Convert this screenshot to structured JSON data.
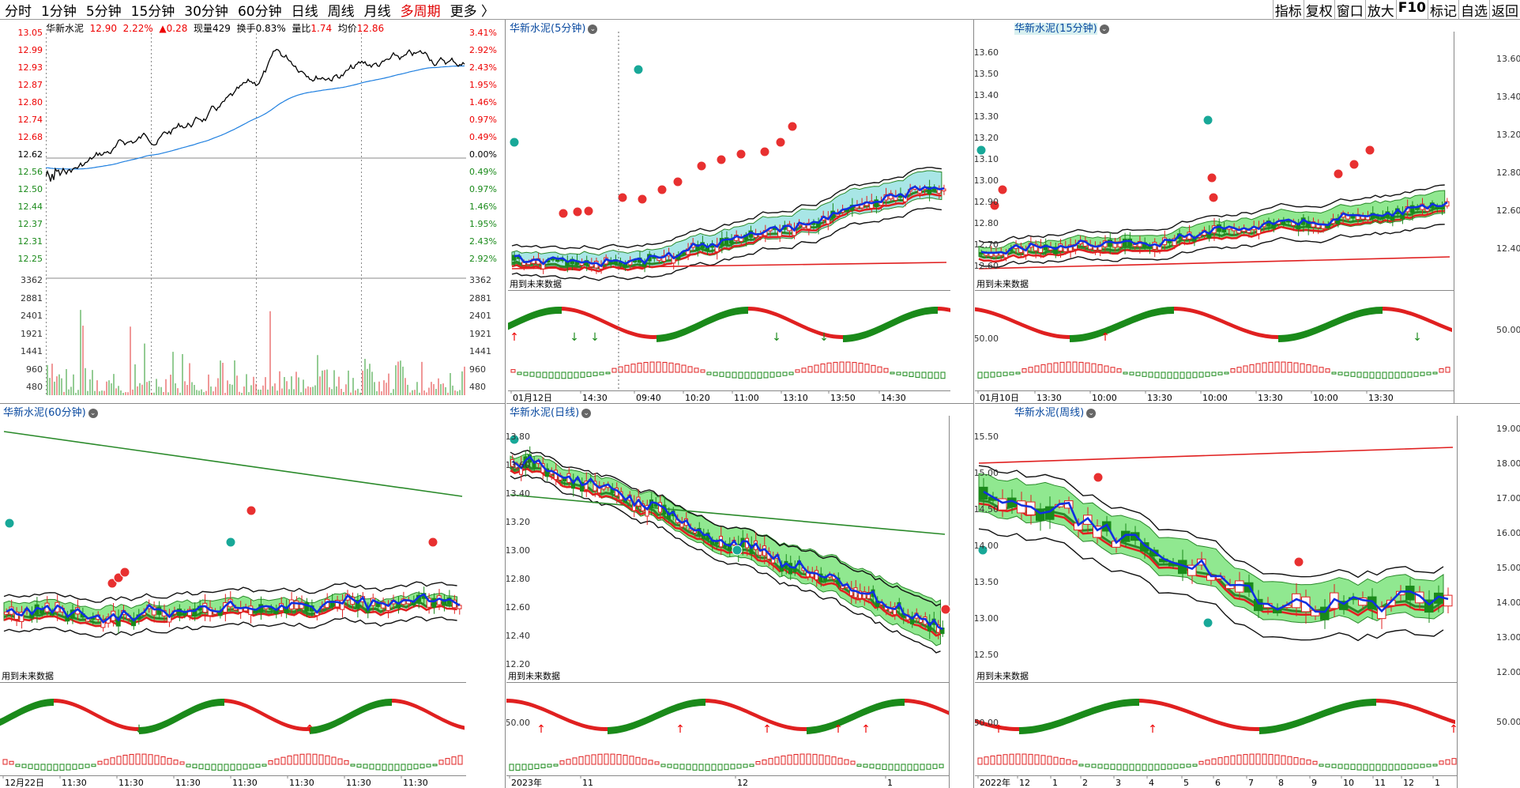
{
  "toolbar": {
    "periods": [
      "分时",
      "1分钟",
      "5分钟",
      "15分钟",
      "30分钟",
      "60分钟",
      "日线",
      "周线",
      "月线"
    ],
    "multi": "多周期",
    "more": "更多",
    "right": [
      "指标",
      "复权",
      "窗口",
      "放大",
      "F10",
      "标记",
      "自选",
      "返回"
    ]
  },
  "timeshare": {
    "name": "华新水泥",
    "price": "12.90",
    "pct": "2.22%",
    "change": "▲0.28",
    "volume_label": "现量",
    "volume": "429",
    "turnover_label": "换手",
    "turnover": "0.83%",
    "ratio_label": "量比",
    "ratio": "1.74",
    "avg_label": "均价",
    "avg": "12.86",
    "left_axis": [
      "13.05",
      "12.99",
      "12.93",
      "12.87",
      "12.80",
      "12.74",
      "12.68",
      "12.62",
      "12.56",
      "12.50",
      "12.44",
      "12.37",
      "12.31",
      "12.25"
    ],
    "right_axis": [
      "3.41%",
      "2.92%",
      "2.43%",
      "1.95%",
      "1.46%",
      "0.97%",
      "0.49%",
      "0.00%",
      "0.49%",
      "0.97%",
      "1.46%",
      "1.95%",
      "2.43%",
      "2.92%"
    ],
    "vol_axis_left": [
      "3362",
      "2881",
      "2401",
      "1921",
      "1441",
      "960",
      "480"
    ],
    "vol_axis_right": [
      "3362",
      "2881",
      "2401",
      "1921",
      "1441",
      "960",
      "480"
    ]
  },
  "panels": [
    {
      "id": "p5",
      "title": "华新水泥(5分钟)",
      "future": "用到未来数据",
      "axis": [],
      "ind_axis": "",
      "xlabels": [
        "01月12日",
        "14:30",
        "09:40",
        "10:20",
        "11:00",
        "13:10",
        "13:50",
        "14:30"
      ]
    },
    {
      "id": "p15",
      "title": "华新水泥(15分钟)",
      "future": "用到未来数据",
      "axis": [
        "13.60",
        "13.50",
        "13.40",
        "13.30",
        "13.20",
        "13.10",
        "13.00",
        "12.90",
        "12.80",
        "12.70",
        "12.60"
      ],
      "ind_axis": "50.00",
      "xlabels": [
        "01月10日",
        "13:30",
        "10:00",
        "13:30",
        "10:00",
        "13:30",
        "10:00",
        "13:30"
      ]
    },
    {
      "id": "pR1",
      "title": "",
      "future": "",
      "axis": [
        "13.60",
        "13.40",
        "13.20",
        "12.80",
        "12.60",
        "12.40"
      ],
      "ind_axis": "50.00",
      "xlabels": []
    },
    {
      "id": "p60",
      "title": "华新水泥(60分钟)",
      "future": "用到未来数据",
      "axis": [],
      "ind_axis": "",
      "xlabels": [
        "12月22日",
        "11:30",
        "11:30",
        "11:30",
        "11:30",
        "11:30",
        "11:30",
        "11:30"
      ]
    },
    {
      "id": "pD",
      "title": "华新水泥(日线)",
      "future": "用到未来数据",
      "axis": [
        "13.80",
        "13.60",
        "13.40",
        "13.20",
        "13.00",
        "12.80",
        "12.60",
        "12.40",
        "12.20"
      ],
      "ind_axis": "50.00",
      "xlabels": [
        "2023年",
        "11",
        "12",
        "1"
      ]
    },
    {
      "id": "pW",
      "title": "华新水泥(周线)",
      "future": "用到未来数据",
      "axis": [
        "15.50",
        "15.00",
        "14.50",
        "14.00",
        "13.50",
        "13.00",
        "12.50"
      ],
      "ind_axis": "50.00",
      "xlabels": [
        "2022年",
        "12",
        "1",
        "2",
        "3",
        "4",
        "5",
        "6",
        "7",
        "8",
        "9",
        "10",
        "11",
        "12",
        "1"
      ]
    },
    {
      "id": "pR2",
      "title": "",
      "future": "",
      "axis": [
        "19.00",
        "18.00",
        "17.00",
        "16.00",
        "15.00",
        "14.00",
        "13.00",
        "12.00"
      ],
      "ind_axis": "50.00",
      "xlabels": []
    }
  ],
  "colors": {
    "up": "#e02020",
    "down": "#1a8a1a",
    "ma_blue": "#1030e0",
    "band": "#90e890",
    "band2": "#a8e6e6"
  }
}
